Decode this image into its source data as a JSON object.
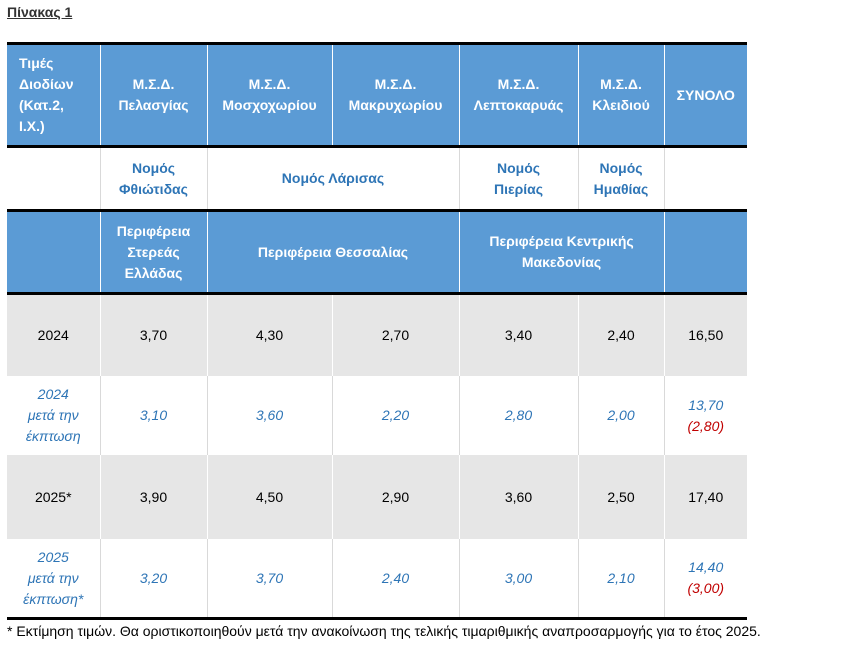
{
  "caption": "Πίνακας 1",
  "header": {
    "first_cell": [
      "Τιμές",
      "Διοδίων",
      "(Κατ.2,",
      "Ι.Χ.)"
    ],
    "stations": [
      [
        "Μ.Σ.Δ.",
        "Πελασγίας"
      ],
      [
        "Μ.Σ.Δ.",
        "Μοσχοχωρίου"
      ],
      [
        "Μ.Σ.Δ.",
        "Μακρυχωρίου"
      ],
      [
        "Μ.Σ.Δ.",
        "Λεπτοκαρυάς"
      ],
      [
        "Μ.Σ.Δ.",
        "Κλειδιού"
      ]
    ],
    "total": "ΣΥΝΟΛΟ"
  },
  "prefectures": {
    "fthiotida": [
      "Νομός",
      "Φθιώτιδας"
    ],
    "larisa": "Νομός Λάρισας",
    "pieria": [
      "Νομός",
      "Πιερίας"
    ],
    "imathia": [
      "Νομός",
      "Ημαθίας"
    ]
  },
  "regions": {
    "sterea": [
      "Περιφέρεια",
      "Στερεάς",
      "Ελλάδας"
    ],
    "thessalia": "Περιφέρεια Θεσσαλίας",
    "kentriki": [
      "Περιφέρεια Κεντρικής",
      "Μακεδονίας"
    ]
  },
  "rows": [
    {
      "label": [
        "2024"
      ],
      "values": [
        "3,70",
        "4,30",
        "2,70",
        "3,40",
        "2,40"
      ],
      "total": "16,50"
    },
    {
      "label": [
        "2024",
        "μετά την",
        "έκπτωση"
      ],
      "values": [
        "3,10",
        "3,60",
        "2,20",
        "2,80",
        "2,00"
      ],
      "total": "13,70",
      "discount": "(2,80)"
    },
    {
      "label": [
        "2025*"
      ],
      "values": [
        "3,90",
        "4,50",
        "2,90",
        "3,60",
        "2,50"
      ],
      "total": "17,40"
    },
    {
      "label": [
        "2025",
        "μετά την",
        "έκπτωση*"
      ],
      "values": [
        "3,20",
        "3,70",
        "2,40",
        "3,00",
        "2,10"
      ],
      "total": "14,40",
      "discount": "(3,00)"
    }
  ],
  "footnote": "* Εκτίμηση τιμών. Θα οριστικοποιηθούν μετά την ανακοίνωση της τελικής τιμαριθμικής αναπροσαρμογής για το έτος 2025."
}
